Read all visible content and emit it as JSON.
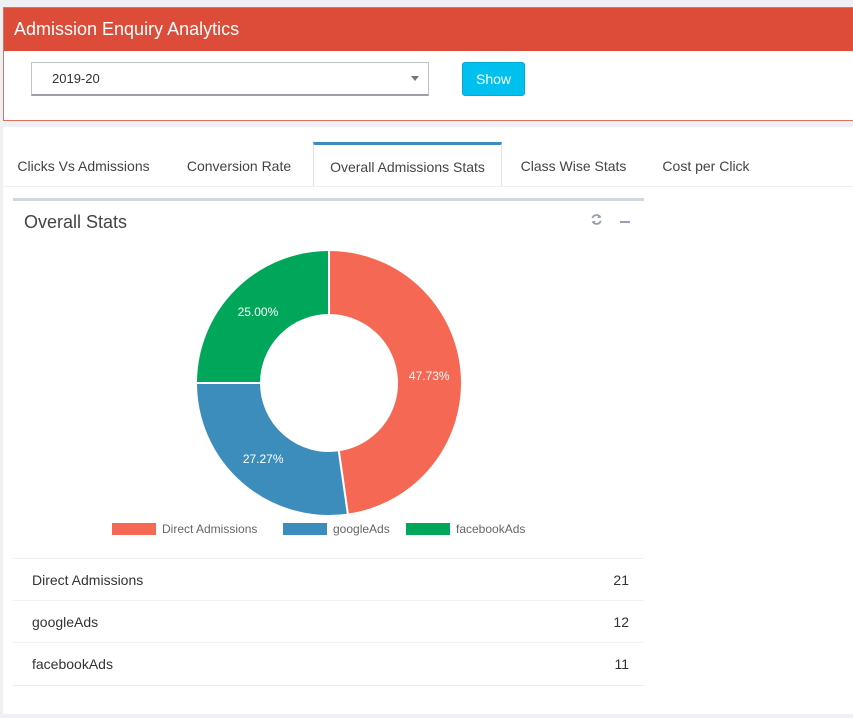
{
  "header": {
    "title": "Admission Enquiry Analytics"
  },
  "filter": {
    "year": "2019-20",
    "show_label": "Show"
  },
  "tabs": [
    {
      "label": "Clicks Vs Admissions"
    },
    {
      "label": "Conversion Rate"
    },
    {
      "label": "Overall Admissions Stats",
      "active": true
    },
    {
      "label": "Class Wise Stats"
    },
    {
      "label": "Cost per Click"
    }
  ],
  "box": {
    "title": "Overall Stats",
    "tools": [
      "refresh-icon",
      "minus-icon"
    ]
  },
  "colors": {
    "header": "#dd4b39",
    "show_button": "#00c0ef",
    "direct": "#f56954",
    "google": "#3c8dbc",
    "facebook": "#00a65a"
  },
  "chart_data": {
    "type": "pie",
    "variant": "doughnut",
    "categories": [
      "Direct Admissions",
      "googleAds",
      "facebookAds"
    ],
    "values": [
      21,
      12,
      11
    ],
    "labels": [
      "47.73%",
      "27.27%",
      "25.00%"
    ],
    "colors": [
      "#f56954",
      "#3c8dbc",
      "#00a65a"
    ],
    "legend_position": "bottom"
  },
  "table": {
    "rows": [
      {
        "label": "Direct Admissions",
        "value": "21"
      },
      {
        "label": "googleAds",
        "value": "12"
      },
      {
        "label": "facebookAds",
        "value": "11"
      }
    ]
  }
}
